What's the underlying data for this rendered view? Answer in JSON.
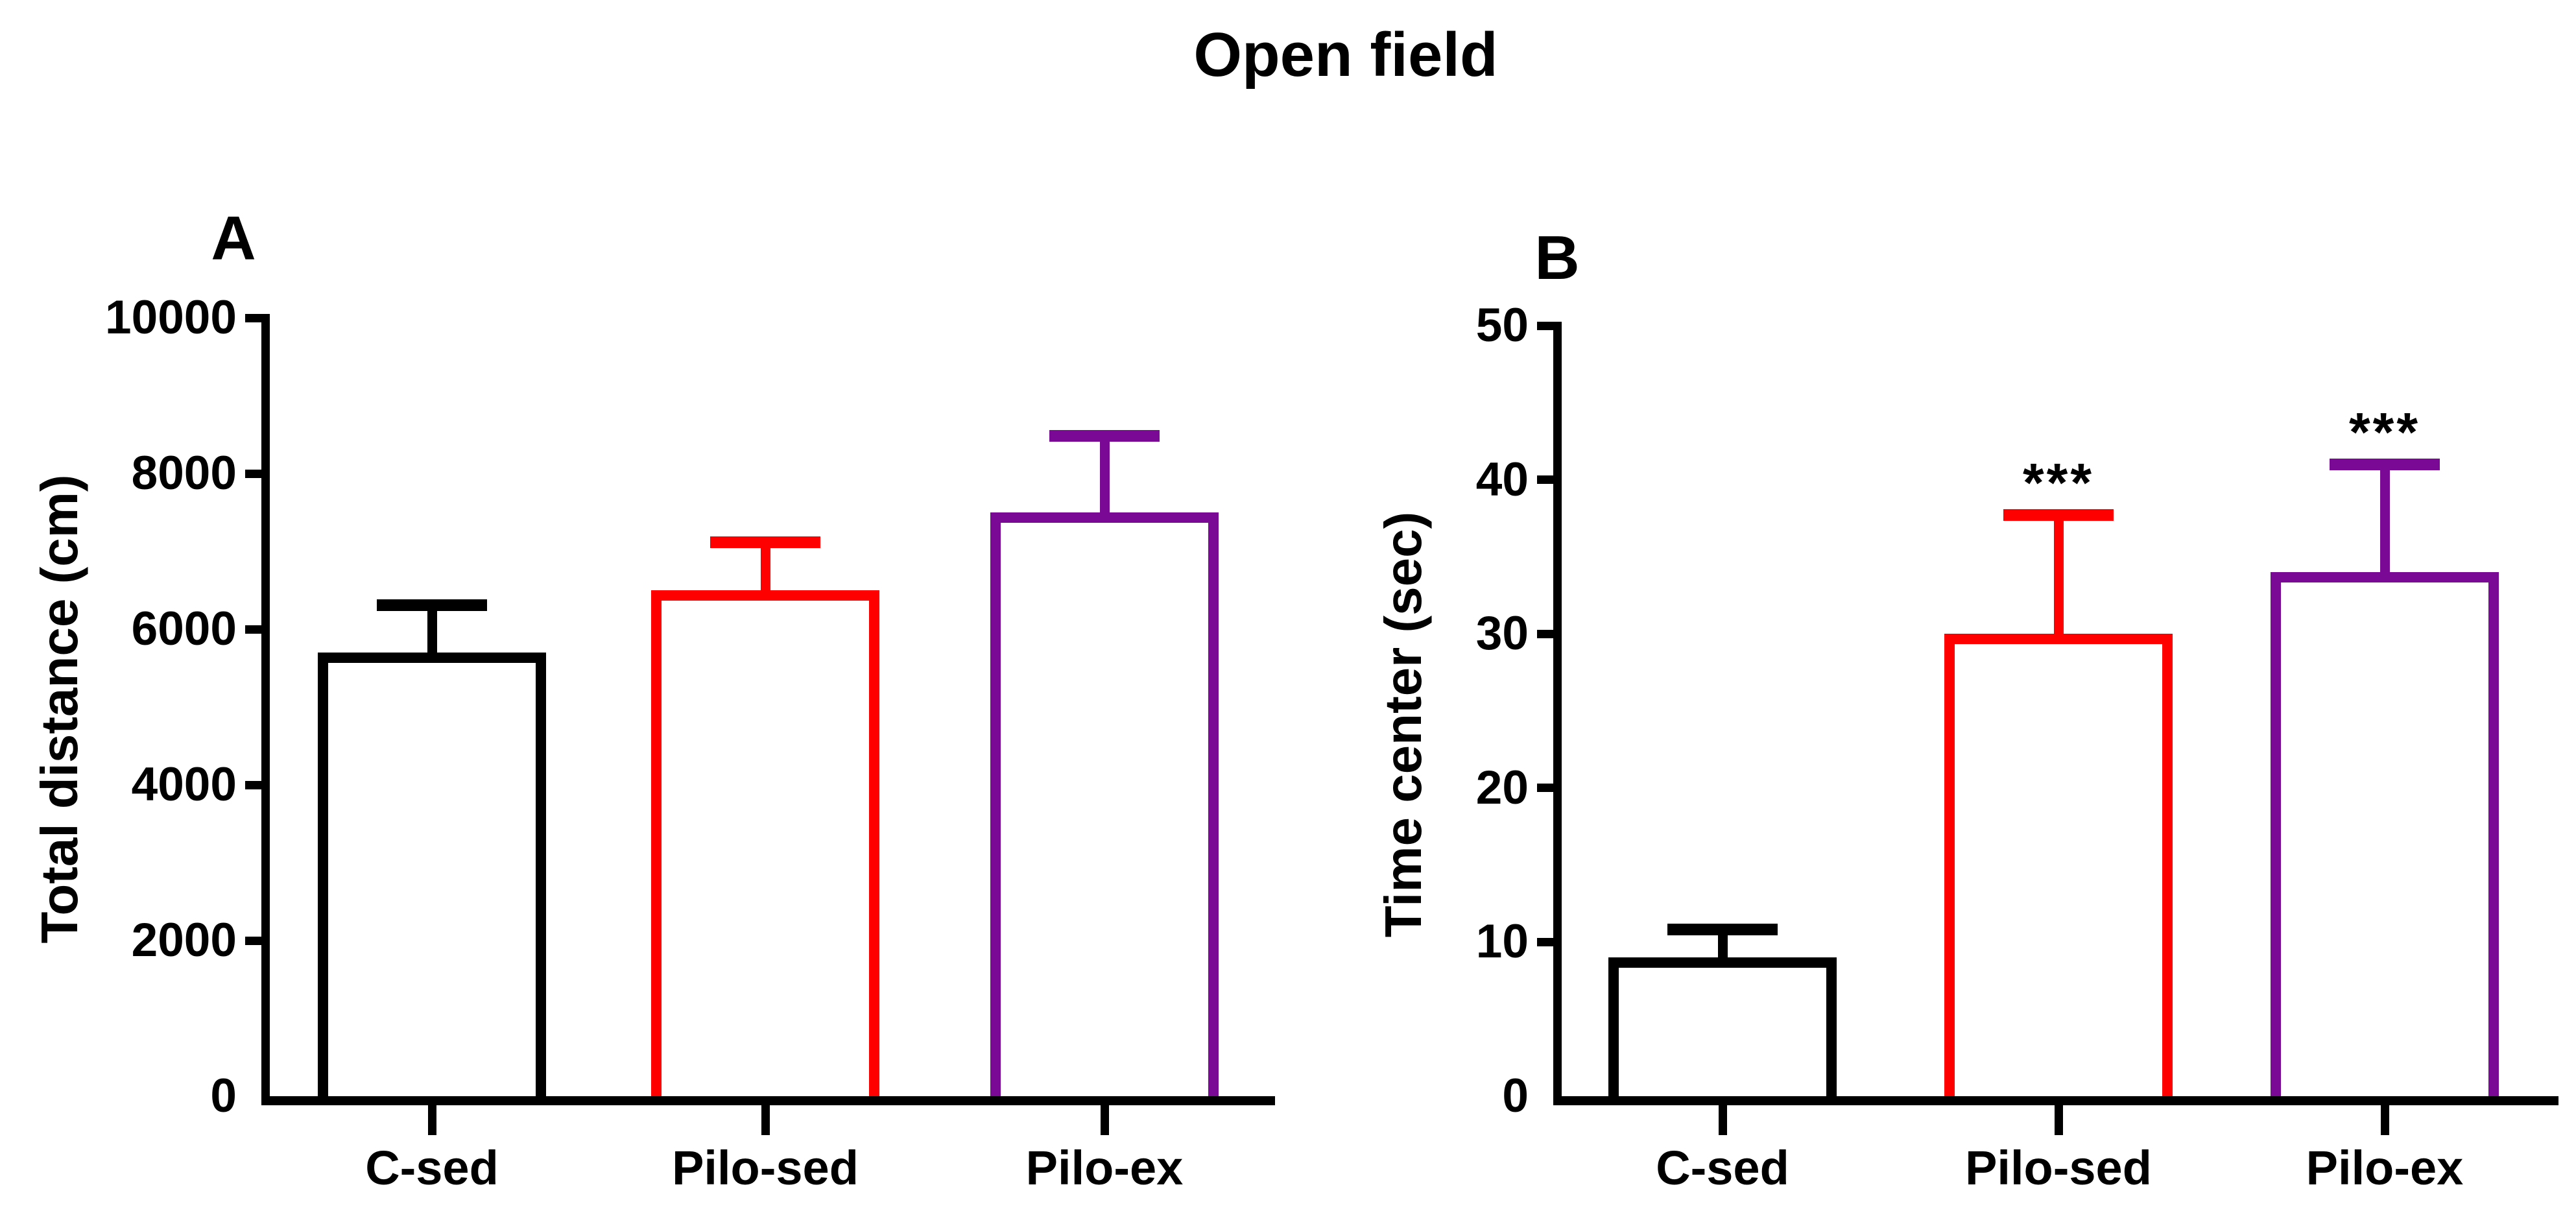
{
  "figure": {
    "title": "Open field"
  },
  "chart_data": [
    {
      "type": "bar",
      "panel_label": "A",
      "title": "",
      "xlabel": "",
      "ylabel": "Total distance (cm)",
      "categories": [
        "C-sed",
        "Pilo-sed",
        "Pilo-ex"
      ],
      "values": [
        5700,
        6500,
        7500
      ],
      "sem": [
        610,
        620,
        980
      ],
      "error_top": [
        6310,
        7120,
        8480
      ],
      "significance": [
        "",
        "",
        ""
      ],
      "bar_colors": [
        "#000000",
        "#FF0000",
        "#7A0996"
      ],
      "bar_fill": "#FFFFFF",
      "ylim": [
        0,
        10000
      ],
      "yticks": [
        0,
        2000,
        4000,
        6000,
        8000,
        10000
      ],
      "grid": false,
      "legend_position": "none",
      "error_bars": "SEM upper only, T-cap"
    },
    {
      "type": "bar",
      "panel_label": "B",
      "title": "",
      "xlabel": "",
      "ylabel": "Time center (sec)",
      "categories": [
        "C-sed",
        "Pilo-sed",
        "Pilo-ex"
      ],
      "values": [
        9,
        30,
        34
      ],
      "sem": [
        1.8,
        7.7,
        7.0
      ],
      "error_top": [
        10.8,
        37.7,
        41.0
      ],
      "significance": [
        "",
        "***",
        "***"
      ],
      "bar_colors": [
        "#000000",
        "#FF0000",
        "#7A0996"
      ],
      "bar_fill": "#FFFFFF",
      "ylim": [
        0,
        50
      ],
      "yticks": [
        0,
        10,
        20,
        30,
        40,
        50
      ],
      "grid": false,
      "legend_position": "none",
      "error_bars": "SEM upper only, T-cap"
    }
  ],
  "style_colors": {
    "axis": "#000000",
    "text": "#000000",
    "background": "#FFFFFF",
    "significance": "#000000"
  }
}
